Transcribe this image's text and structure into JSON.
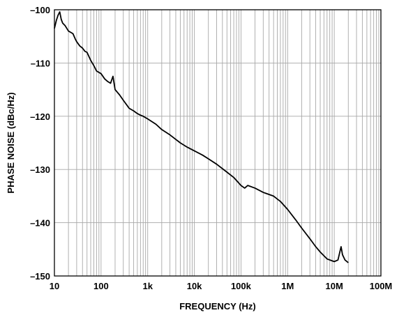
{
  "chart_data": {
    "type": "line",
    "title": "",
    "xlabel": "FREQUENCY (Hz)",
    "ylabel": "PHASE NOISE (dBc/Hz)",
    "xscale": "log",
    "xlim": [
      10,
      100000000
    ],
    "ylim": [
      -150,
      -100
    ],
    "x_ticks": [
      {
        "value": 10,
        "label": "10"
      },
      {
        "value": 100,
        "label": "100"
      },
      {
        "value": 1000,
        "label": "1k"
      },
      {
        "value": 10000,
        "label": "10k"
      },
      {
        "value": 100000,
        "label": "100k"
      },
      {
        "value": 1000000,
        "label": "1M"
      },
      {
        "value": 10000000,
        "label": "10M"
      },
      {
        "value": 100000000,
        "label": "100M"
      }
    ],
    "y_ticks": [
      {
        "value": -100,
        "label": "–100"
      },
      {
        "value": -110,
        "label": "–110"
      },
      {
        "value": -120,
        "label": "–120"
      },
      {
        "value": -130,
        "label": "–130"
      },
      {
        "value": -140,
        "label": "–140"
      },
      {
        "value": -150,
        "label": "–150"
      }
    ],
    "grid": true,
    "legend": "none",
    "series": [
      {
        "color": "#000000",
        "points": [
          [
            10,
            -103.5
          ],
          [
            11,
            -102.0
          ],
          [
            12,
            -101.0
          ],
          [
            13,
            -100.4
          ],
          [
            14,
            -101.8
          ],
          [
            15,
            -102.5
          ],
          [
            17,
            -103.0
          ],
          [
            20,
            -104.0
          ],
          [
            23,
            -104.3
          ],
          [
            25,
            -104.5
          ],
          [
            28,
            -105.5
          ],
          [
            30,
            -106.0
          ],
          [
            35,
            -106.8
          ],
          [
            40,
            -107.2
          ],
          [
            45,
            -107.8
          ],
          [
            50,
            -108.0
          ],
          [
            60,
            -109.5
          ],
          [
            70,
            -110.5
          ],
          [
            80,
            -111.5
          ],
          [
            100,
            -112.0
          ],
          [
            120,
            -113.0
          ],
          [
            140,
            -113.5
          ],
          [
            160,
            -113.8
          ],
          [
            180,
            -112.5
          ],
          [
            200,
            -115.0
          ],
          [
            250,
            -116.0
          ],
          [
            300,
            -117.0
          ],
          [
            400,
            -118.5
          ],
          [
            500,
            -119.0
          ],
          [
            600,
            -119.5
          ],
          [
            700,
            -119.8
          ],
          [
            800,
            -120.0
          ],
          [
            1000,
            -120.5
          ],
          [
            1500,
            -121.5
          ],
          [
            2000,
            -122.5
          ],
          [
            3000,
            -123.5
          ],
          [
            5000,
            -125.0
          ],
          [
            7000,
            -125.8
          ],
          [
            10000,
            -126.5
          ],
          [
            15000,
            -127.3
          ],
          [
            20000,
            -128.0
          ],
          [
            30000,
            -129.0
          ],
          [
            50000,
            -130.5
          ],
          [
            70000,
            -131.5
          ],
          [
            100000,
            -133.0
          ],
          [
            120000,
            -133.5
          ],
          [
            140000,
            -133.0
          ],
          [
            200000,
            -133.5
          ],
          [
            300000,
            -134.3
          ],
          [
            500000,
            -135.0
          ],
          [
            700000,
            -136.0
          ],
          [
            1000000,
            -137.5
          ],
          [
            1500000,
            -139.5
          ],
          [
            2000000,
            -141.0
          ],
          [
            3000000,
            -143.0
          ],
          [
            4000000,
            -144.5
          ],
          [
            5000000,
            -145.5
          ],
          [
            7000000,
            -146.8
          ],
          [
            10000000,
            -147.3
          ],
          [
            12000000,
            -147.0
          ],
          [
            14000000,
            -144.5
          ],
          [
            15000000,
            -146.0
          ],
          [
            17000000,
            -147.0
          ],
          [
            20000000,
            -147.5
          ]
        ]
      }
    ]
  }
}
